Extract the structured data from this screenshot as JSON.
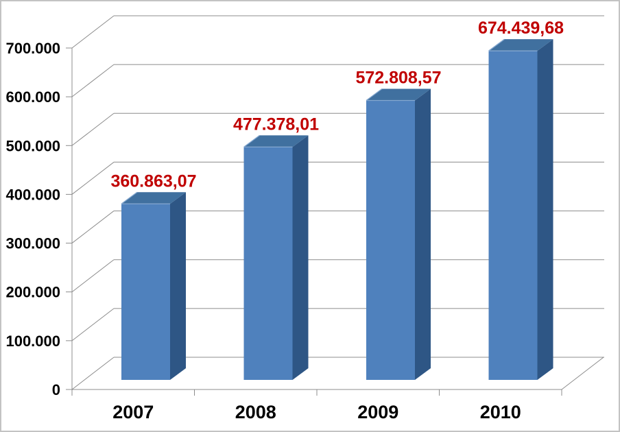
{
  "chart_data": {
    "type": "bar",
    "subtype": "3d-column",
    "title": "",
    "xlabel": "",
    "ylabel": "",
    "categories": [
      "2007",
      "2008",
      "2009",
      "2010"
    ],
    "values": [
      360863.07,
      477378.01,
      572808.57,
      674439.68
    ],
    "value_labels": [
      "360.863,07",
      "477.378,01",
      "572.808,57",
      "674.439,68"
    ],
    "y_tick_labels": [
      "0",
      "100.000",
      "200.000",
      "300.000",
      "400.000",
      "500.000",
      "600.000",
      "700.000"
    ],
    "ylim": [
      0,
      700000
    ],
    "y_tick_step": 100000,
    "grid": true,
    "legend": false,
    "number_format": "thousands-dot-decimal-comma",
    "colors": {
      "bar_front": "#4F81BD",
      "bar_top": "#40709F",
      "bar_side": "#2E5685",
      "bar_edge_highlight": "#85A8D0",
      "value_label": "#C00000",
      "axis_text": "#000000",
      "gridline": "#8C8C8C",
      "axis_line": "#8C8C8C",
      "frame_border": "#C3C3C3",
      "background": "#FFFFFF"
    }
  }
}
